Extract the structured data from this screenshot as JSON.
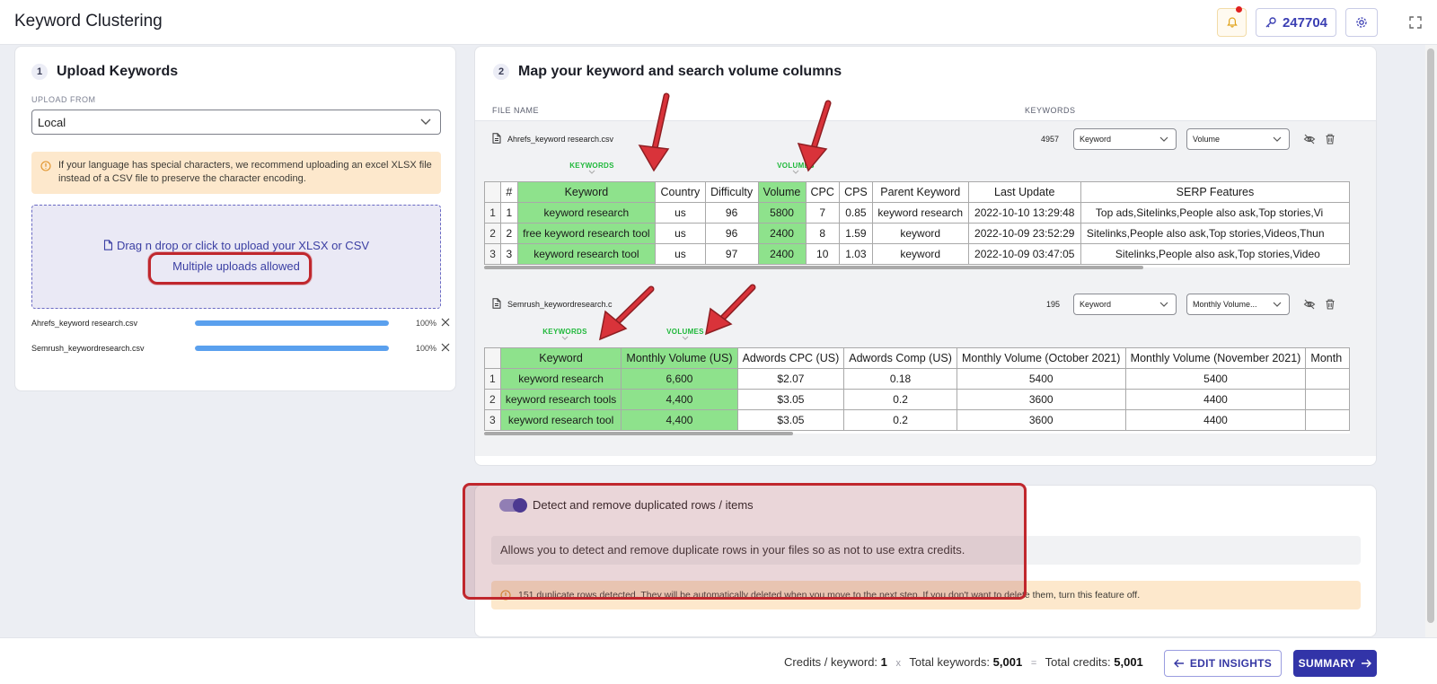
{
  "header": {
    "title": "Keyword Clustering",
    "credits_value": "247704",
    "icons": {
      "bell": "bell-icon",
      "credits": "key-icon",
      "settings": "gear-icon",
      "expand": "expand-icon"
    }
  },
  "upload_card": {
    "step": "1",
    "title": "Upload Keywords",
    "upload_from_label": "UPLOAD FROM",
    "upload_from_value": "Local",
    "warning": "If your language has special characters, we recommend uploading an excel XLSX file instead of a CSV file to preserve the character encoding.",
    "dropzone_text": "Drag n drop or click to upload your XLSX or CSV",
    "dropzone_sub": "Multiple uploads allowed",
    "files": [
      {
        "name": "Ahrefs_keyword research.csv",
        "progress": 100,
        "pct_label": "100%"
      },
      {
        "name": "Semrush_keywordresearch.csv",
        "progress": 100,
        "pct_label": "100%"
      }
    ]
  },
  "map_card": {
    "step": "2",
    "title": "Map your keyword and search volume columns",
    "col_file_name": "FILE NAME",
    "col_keywords": "KEYWORDS",
    "files": [
      {
        "name": "Ahrefs_keyword research.csv",
        "count": "4957",
        "keyword_col": "Keyword",
        "volume_col": "Volume",
        "label_keywords": "KEYWORDS",
        "label_volumes": "VOLUMES",
        "headers": [
          "",
          "#",
          "Keyword",
          "Country",
          "Difficulty",
          "Volume",
          "CPC",
          "CPS",
          "Parent Keyword",
          "Last Update",
          "SERP Features"
        ],
        "rows": [
          [
            "1",
            "1",
            "keyword research",
            "us",
            "96",
            "5800",
            "7",
            "0.85",
            "keyword research",
            "2022-10-10 13:29:48",
            "Top ads,Sitelinks,People also ask,Top stories,Vi"
          ],
          [
            "2",
            "2",
            "free keyword research tool",
            "us",
            "96",
            "2400",
            "8",
            "1.59",
            "keyword",
            "2022-10-09 23:52:29",
            "Sitelinks,People also ask,Top stories,Videos,Thun"
          ],
          [
            "3",
            "3",
            "keyword research tool",
            "us",
            "97",
            "2400",
            "10",
            "1.03",
            "keyword",
            "2022-10-09 03:47:05",
            "Sitelinks,People also ask,Top stories,Video"
          ]
        ]
      },
      {
        "name": "Semrush_keywordresearch.csv",
        "name_display": "Semrush_keywordresearch.c",
        "count": "195",
        "keyword_col": "Keyword",
        "volume_col": "Monthly Volume...",
        "label_keywords": "KEYWORDS",
        "label_volumes": "VOLUMES",
        "headers": [
          "",
          "Keyword",
          "Monthly Volume (US)",
          "Adwords CPC (US)",
          "Adwords Comp (US)",
          "Monthly Volume (October 2021)",
          "Monthly Volume (November 2021)",
          "Month"
        ],
        "rows": [
          [
            "1",
            "keyword research",
            "6,600",
            "$2.07",
            "0.18",
            "5400",
            "5400",
            ""
          ],
          [
            "2",
            "keyword research tools",
            "4,400",
            "$3.05",
            "0.2",
            "3600",
            "4400",
            ""
          ],
          [
            "3",
            "keyword research tool",
            "4,400",
            "$3.05",
            "0.2",
            "3600",
            "4400",
            ""
          ]
        ]
      }
    ]
  },
  "dedupe_card": {
    "toggle_label": "Detect and remove duplicated rows / items",
    "toggle_on": true,
    "info": "Allows you to detect and remove duplicate rows in your files so as not to use extra credits.",
    "warning": "151 duplicate rows detected. They will be automatically deleted when you move to the next step. If you don't want to delete them, turn this feature off."
  },
  "footer": {
    "credits_per_keyword_label": "Credits / keyword:",
    "credits_per_keyword": "1",
    "times": "x",
    "total_keywords_label": "Total keywords:",
    "total_keywords": "5,001",
    "equals": "=",
    "total_credits_label": "Total credits:",
    "total_credits": "5,001",
    "edit_button": "EDIT INSIGHTS",
    "summary_button": "SUMMARY"
  },
  "colors": {
    "accent": "#3234a8",
    "mapped_column": "#8ee28c",
    "warning_bg": "#fde8cc",
    "annotation_red": "#c0272d"
  }
}
